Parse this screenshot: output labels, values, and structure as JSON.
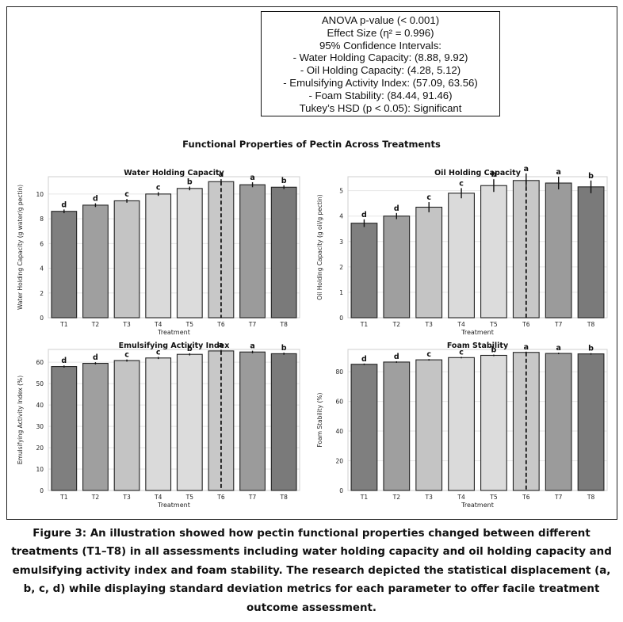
{
  "stats_box": {
    "lines": [
      "ANOVA p-value (< 0.001)",
      "Effect Size (η² = 0.996)",
      "95% Confidence Intervals:",
      "- Water Holding Capacity: (8.88, 9.92)",
      "- Oil Holding Capacity: (4.28, 5.12)",
      "- Emulsifying Activity Index: (57.09, 63.56)",
      "- Foam Stability: (84.44, 91.46)",
      "Tukey’s HSD (p < 0.05): Significant"
    ]
  },
  "figure_title": "Functional Properties of Pectin Across Treatments",
  "caption": "Figure 3: An illustration showed how pectin functional properties changed between different treatments (T1–T8) in all assessments including water holding capacity and oil holding capacity and emulsifying activity index and foam stability. The research depicted the statistical displacement (a, b, c, d) while displaying standard deviation metrics for each parameter to offer facile treatment outcome assessment.",
  "colors": {
    "bars": [
      "#7f7f7f",
      "#9f9f9f",
      "#c4c4c4",
      "#dadada",
      "#dcdcdc",
      "#c8c8c8",
      "#9b9b9b",
      "#7a7a7a"
    ],
    "edge": "#222222",
    "grid": "#e6e6e6"
  },
  "chart_data": [
    {
      "type": "bar",
      "title": "Water Holding Capacity",
      "xlabel": "Treatment",
      "ylabel": "Water Holding Capacity (g water/g pectin)",
      "categories": [
        "T1",
        "T2",
        "T3",
        "T4",
        "T5",
        "T6",
        "T7",
        "T8"
      ],
      "values": [
        8.6,
        9.1,
        9.45,
        10.0,
        10.45,
        11.0,
        10.75,
        10.55
      ],
      "errors": [
        0.15,
        0.15,
        0.15,
        0.15,
        0.15,
        0.2,
        0.2,
        0.15
      ],
      "letters": [
        "d",
        "d",
        "c",
        "c",
        "b",
        "a",
        "a",
        "b"
      ],
      "ylim": [
        0,
        11.4
      ],
      "yticks": [
        0,
        2,
        4,
        6,
        8,
        10
      ],
      "highlight": "T6"
    },
    {
      "type": "bar",
      "title": "Oil Holding Capacity",
      "xlabel": "Treatment",
      "ylabel": "Oil Holding Capacity (g oil/g pectin)",
      "categories": [
        "T1",
        "T2",
        "T3",
        "T4",
        "T5",
        "T6",
        "T7",
        "T8"
      ],
      "values": [
        3.72,
        4.0,
        4.35,
        4.9,
        5.2,
        5.4,
        5.3,
        5.15
      ],
      "errors": [
        0.15,
        0.12,
        0.2,
        0.2,
        0.25,
        0.28,
        0.25,
        0.25
      ],
      "letters": [
        "d",
        "d",
        "c",
        "c",
        "b",
        "a",
        "a",
        "b"
      ],
      "ylim": [
        0,
        5.55
      ],
      "yticks": [
        0,
        1,
        2,
        3,
        4,
        5
      ],
      "highlight": "T6"
    },
    {
      "type": "bar",
      "title": "Emulsifying Activity Index",
      "xlabel": "Treatment",
      "ylabel": "Emulsifying Activity Index (%)",
      "categories": [
        "T1",
        "T2",
        "T3",
        "T4",
        "T5",
        "T6",
        "T7",
        "T8"
      ],
      "values": [
        58.0,
        59.5,
        60.8,
        62.0,
        63.7,
        65.3,
        64.8,
        64.0
      ],
      "errors": [
        0.5,
        0.5,
        0.5,
        0.5,
        0.5,
        0.5,
        0.6,
        0.5
      ],
      "letters": [
        "d",
        "d",
        "c",
        "c",
        "b",
        "a",
        "a",
        "b"
      ],
      "ylim": [
        0,
        66
      ],
      "yticks": [
        0,
        10,
        20,
        30,
        40,
        50,
        60
      ],
      "highlight": "T6"
    },
    {
      "type": "bar",
      "title": "Foam Stability",
      "xlabel": "Treatment",
      "ylabel": "Foam Stability (%)",
      "categories": [
        "T1",
        "T2",
        "T3",
        "T4",
        "T5",
        "T6",
        "T7",
        "T8"
      ],
      "values": [
        85.0,
        86.5,
        88.0,
        89.5,
        91.0,
        93.0,
        92.3,
        92.0
      ],
      "errors": [
        0.5,
        0.5,
        0.5,
        0.5,
        0.5,
        0.5,
        0.5,
        0.5
      ],
      "letters": [
        "d",
        "d",
        "c",
        "c",
        "b",
        "a",
        "a",
        "b"
      ],
      "ylim": [
        0,
        95
      ],
      "yticks": [
        0,
        20,
        40,
        60,
        80
      ],
      "highlight": "T6"
    }
  ]
}
